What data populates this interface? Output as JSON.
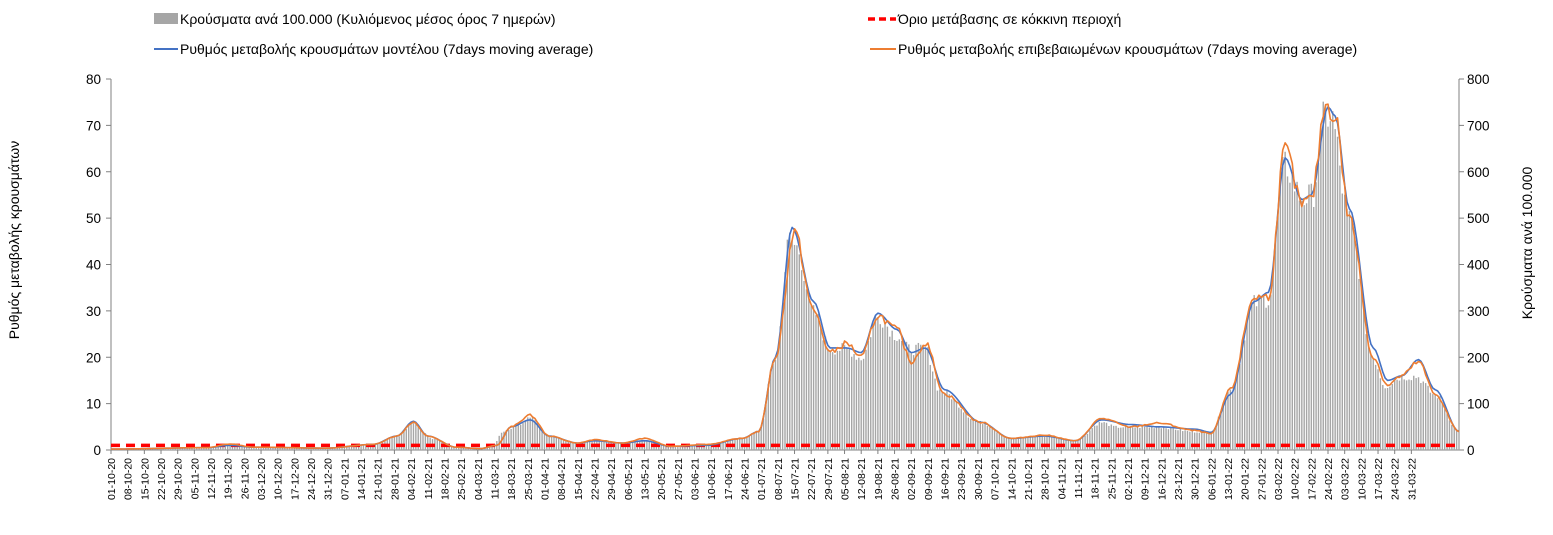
{
  "colors": {
    "bars": "#a6a6a6",
    "threshold": "#ff0000",
    "model_line": "#4472c4",
    "confirmed_line": "#ed7d31",
    "axis": "#808080",
    "grid": "#d9d9d9"
  },
  "chart_data": {
    "type": "bar",
    "title": "",
    "ylabel_left": "Ρυθμός μεταβολής κρουσμάτων",
    "ylabel_right": "Κρούσματα ανά 100.000",
    "ylim_left": [
      0,
      80
    ],
    "ylim_right": [
      0,
      800
    ],
    "yticks_left": [
      "0",
      "10",
      "20",
      "30",
      "40",
      "50",
      "60",
      "70",
      "80"
    ],
    "yticks_right": [
      "0",
      "100",
      "200",
      "300",
      "400",
      "500",
      "600",
      "700",
      "800"
    ],
    "x_start": "2020-10-01",
    "x_end": "2022-03-31",
    "x_tick_labels": [
      "01-10-20",
      "08-10-20",
      "15-10-20",
      "22-10-20",
      "29-10-20",
      "05-11-20",
      "12-11-20",
      "19-11-20",
      "26-11-20",
      "03-12-20",
      "10-12-20",
      "17-12-20",
      "24-12-20",
      "31-12-20",
      "07-01-21",
      "14-01-21",
      "21-01-21",
      "28-01-21",
      "04-02-21",
      "11-02-21",
      "18-02-21",
      "25-02-21",
      "04-03-21",
      "11-03-21",
      "18-03-21",
      "25-03-21",
      "01-04-21",
      "08-04-21",
      "15-04-21",
      "22-04-21",
      "29-04-21",
      "06-05-21",
      "13-05-21",
      "20-05-21",
      "27-05-21",
      "03-06-21",
      "10-06-21",
      "17-06-21",
      "24-06-21",
      "01-07-21",
      "08-07-21",
      "15-07-21",
      "22-07-21",
      "29-07-21",
      "05-08-21",
      "12-08-21",
      "19-08-21",
      "26-08-21",
      "02-09-21",
      "09-09-21",
      "16-09-21",
      "23-09-21",
      "30-09-21",
      "07-10-21",
      "14-10-21",
      "21-10-21",
      "28-10-21",
      "04-11-21",
      "11-11-21",
      "18-11-21",
      "25-11-21",
      "02-12-21",
      "09-12-21",
      "16-12-21",
      "23-12-21",
      "30-12-21",
      "06-01-22",
      "13-01-22",
      "20-01-22",
      "27-01-22",
      "03-02-22",
      "10-02-22",
      "17-02-22",
      "24-02-22",
      "03-03-22",
      "10-03-22",
      "17-03-22",
      "24-03-22",
      "31-03-22"
    ],
    "legend": {
      "bars": "Κρούσματα ανά 100.000 (Κυλιόμενος μέσος όρος 7 ημερών)",
      "threshold": "Όριο μετάβασης σε κόκκινη περιοχή",
      "model": "Ρυθμός μεταβολής κρουσμάτων μοντέλου (7days moving average)",
      "confirmed": "Ρυθμός μεταβολής επιβεβαιωμένων κρουσμάτων (7days moving average)"
    },
    "threshold_value": 1,
    "series_keypoints": {
      "description": "Daily values (left axis units, 7-day moving average) interpolated between key dates given as [day_index_from_2020-10-01, value]",
      "bars": [
        [
          0,
          0.2
        ],
        [
          40,
          0.5
        ],
        [
          50,
          1.2
        ],
        [
          60,
          0.6
        ],
        [
          90,
          0.4
        ],
        [
          110,
          1.2
        ],
        [
          120,
          3
        ],
        [
          127,
          6
        ],
        [
          135,
          2.5
        ],
        [
          145,
          0.6
        ],
        [
          155,
          0.3
        ],
        [
          160,
          1
        ],
        [
          165,
          4
        ],
        [
          172,
          5.5
        ],
        [
          176,
          7
        ],
        [
          184,
          3
        ],
        [
          196,
          1.5
        ],
        [
          203,
          2
        ],
        [
          215,
          1.5
        ],
        [
          224,
          2
        ],
        [
          235,
          0.8
        ],
        [
          250,
          1
        ],
        [
          265,
          2.5
        ],
        [
          272,
          4
        ],
        [
          279,
          20
        ],
        [
          285,
          46
        ],
        [
          288,
          44
        ],
        [
          295,
          30
        ],
        [
          302,
          22
        ],
        [
          309,
          22
        ],
        [
          315,
          20
        ],
        [
          322,
          29
        ],
        [
          330,
          25
        ],
        [
          335,
          22
        ],
        [
          342,
          22
        ],
        [
          348,
          13
        ],
        [
          365,
          6
        ],
        [
          378,
          2.5
        ],
        [
          392,
          3
        ],
        [
          405,
          2
        ],
        [
          416,
          6
        ],
        [
          422,
          5
        ],
        [
          440,
          5
        ],
        [
          455,
          4
        ],
        [
          462,
          4
        ],
        [
          470,
          13
        ],
        [
          480,
          32
        ],
        [
          486,
          33
        ],
        [
          493,
          62
        ],
        [
          500,
          55
        ],
        [
          504,
          55
        ],
        [
          510,
          73
        ],
        [
          512,
          73
        ],
        [
          520,
          50
        ],
        [
          530,
          20
        ],
        [
          535,
          14
        ],
        [
          542,
          16
        ],
        [
          548,
          16
        ],
        [
          556,
          12
        ],
        [
          566,
          4
        ]
      ],
      "model": [
        [
          0,
          0.2
        ],
        [
          40,
          0.5
        ],
        [
          50,
          1
        ],
        [
          60,
          0.6
        ],
        [
          90,
          0.4
        ],
        [
          110,
          1.2
        ],
        [
          120,
          3
        ],
        [
          127,
          6.2
        ],
        [
          133,
          3
        ],
        [
          145,
          0.6
        ],
        [
          155,
          0.3
        ],
        [
          162,
          1
        ],
        [
          168,
          5
        ],
        [
          176,
          6.5
        ],
        [
          184,
          3
        ],
        [
          196,
          1.5
        ],
        [
          203,
          2
        ],
        [
          215,
          1.5
        ],
        [
          224,
          2
        ],
        [
          235,
          0.8
        ],
        [
          250,
          1
        ],
        [
          265,
          2.5
        ],
        [
          272,
          4
        ],
        [
          279,
          20
        ],
        [
          286,
          48
        ],
        [
          295,
          32
        ],
        [
          302,
          22
        ],
        [
          309,
          22
        ],
        [
          315,
          21
        ],
        [
          322,
          29.5
        ],
        [
          330,
          26
        ],
        [
          336,
          21
        ],
        [
          342,
          22
        ],
        [
          350,
          13
        ],
        [
          365,
          6
        ],
        [
          378,
          2.5
        ],
        [
          392,
          3
        ],
        [
          405,
          2
        ],
        [
          416,
          6.5
        ],
        [
          428,
          5.5
        ],
        [
          440,
          5
        ],
        [
          455,
          4.5
        ],
        [
          462,
          3.8
        ],
        [
          470,
          12
        ],
        [
          480,
          32
        ],
        [
          486,
          34
        ],
        [
          493,
          63
        ],
        [
          500,
          54
        ],
        [
          504,
          55
        ],
        [
          511,
          74
        ],
        [
          514,
          72
        ],
        [
          520,
          52
        ],
        [
          530,
          22
        ],
        [
          536,
          15
        ],
        [
          542,
          16
        ],
        [
          549,
          19.5
        ],
        [
          556,
          13
        ],
        [
          566,
          4
        ]
      ],
      "confirmed": [
        [
          0,
          0.2
        ],
        [
          40,
          0.5
        ],
        [
          50,
          1.3
        ],
        [
          60,
          0.6
        ],
        [
          90,
          0.4
        ],
        [
          110,
          1.2
        ],
        [
          120,
          3
        ],
        [
          127,
          6
        ],
        [
          133,
          3
        ],
        [
          145,
          0.6
        ],
        [
          155,
          0.3
        ],
        [
          162,
          1
        ],
        [
          168,
          5
        ],
        [
          176,
          7.5
        ],
        [
          184,
          3
        ],
        [
          196,
          1.5
        ],
        [
          203,
          2.2
        ],
        [
          215,
          1.5
        ],
        [
          224,
          2.5
        ],
        [
          235,
          0.8
        ],
        [
          250,
          1.2
        ],
        [
          265,
          2.5
        ],
        [
          272,
          4
        ],
        [
          279,
          20
        ],
        [
          287,
          47
        ],
        [
          295,
          30
        ],
        [
          302,
          21
        ],
        [
          309,
          23
        ],
        [
          315,
          20
        ],
        [
          322,
          29
        ],
        [
          330,
          26
        ],
        [
          336,
          19
        ],
        [
          342,
          23
        ],
        [
          350,
          12
        ],
        [
          365,
          6
        ],
        [
          378,
          2.5
        ],
        [
          392,
          3.2
        ],
        [
          405,
          2
        ],
        [
          416,
          6.8
        ],
        [
          428,
          5
        ],
        [
          440,
          5.8
        ],
        [
          455,
          4.2
        ],
        [
          462,
          3.5
        ],
        [
          470,
          13
        ],
        [
          480,
          33
        ],
        [
          486,
          33
        ],
        [
          493,
          65
        ],
        [
          500,
          53
        ],
        [
          504,
          54
        ],
        [
          510,
          74.5
        ],
        [
          514,
          72
        ],
        [
          520,
          50
        ],
        [
          530,
          20
        ],
        [
          536,
          14
        ],
        [
          542,
          16
        ],
        [
          549,
          19
        ],
        [
          556,
          12
        ],
        [
          566,
          4
        ]
      ]
    }
  }
}
